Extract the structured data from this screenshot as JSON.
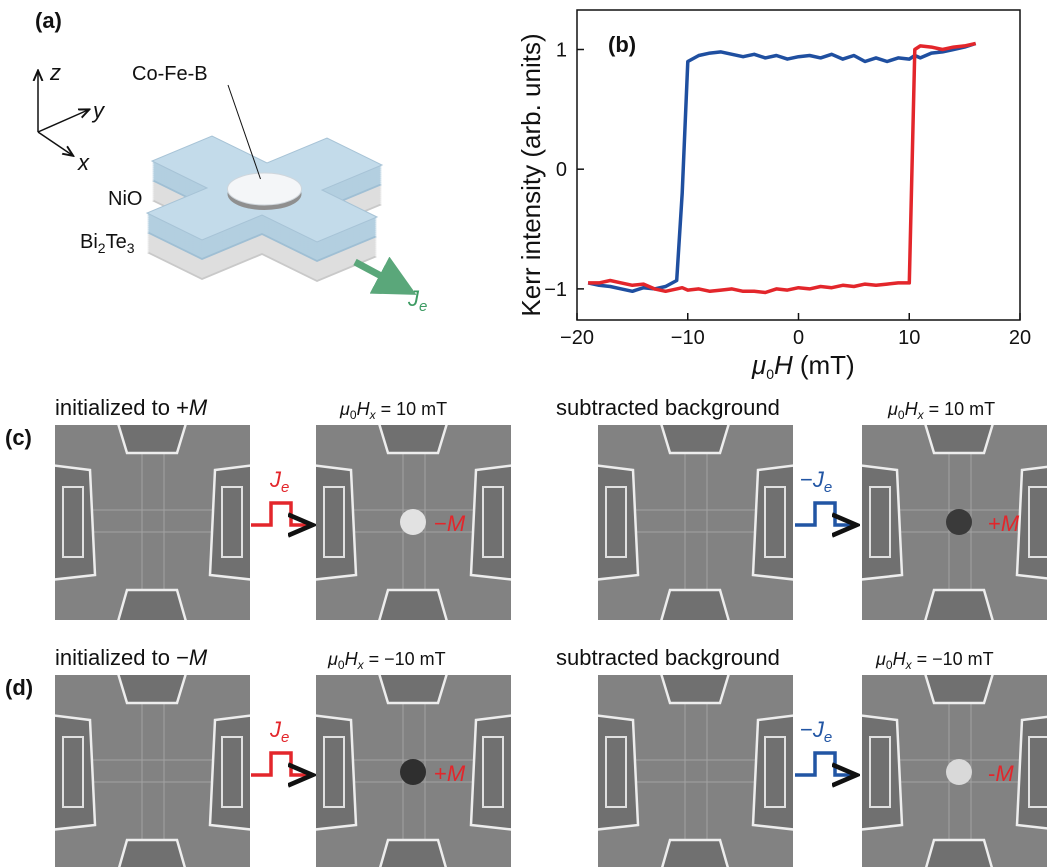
{
  "panel_a": {
    "label": "(a)",
    "axes": [
      "z",
      "y",
      "x"
    ],
    "top_layer": "Co-Fe-B",
    "middle_layer": "NiO",
    "bottom_layer": {
      "main": "Bi",
      "sub1": "2",
      "mid": "Te",
      "sub2": "3"
    },
    "current": {
      "main": "J",
      "sub": "e"
    }
  },
  "chart_data": {
    "type": "line",
    "panel_label": "(b)",
    "ylabel": "Kerr intensity (arb. units)",
    "xlabel": {
      "mu": "μ",
      "mu_sub": "0",
      "var": "H",
      "unit": "(mT)"
    },
    "x": [
      -19,
      -18,
      -17,
      -16,
      -15,
      -14,
      -13,
      -12,
      -11,
      -10.5,
      -10,
      -9,
      -8,
      -7,
      -6,
      -5,
      -4,
      -3,
      -2,
      -1,
      0,
      1,
      2,
      3,
      4,
      5,
      6,
      7,
      8,
      9,
      10,
      10.5,
      11,
      12,
      13,
      14,
      15,
      16
    ],
    "series": [
      {
        "color": "#1f4fa0",
        "values": [
          -0.95,
          -0.97,
          -0.98,
          -1.0,
          -1.02,
          -0.99,
          -1.0,
          -0.98,
          -0.93,
          -0.2,
          0.9,
          0.95,
          0.97,
          0.98,
          0.96,
          0.94,
          0.96,
          0.93,
          0.95,
          0.92,
          0.94,
          0.95,
          0.93,
          0.96,
          0.92,
          0.95,
          0.9,
          0.93,
          0.9,
          0.93,
          0.92,
          0.95,
          0.93,
          0.97,
          0.98,
          1.0,
          1.02,
          1.05
        ]
      },
      {
        "color": "#e3262b",
        "values": [
          -0.95,
          -0.95,
          -0.93,
          -0.95,
          -0.97,
          -0.96,
          -1.0,
          -1.02,
          -1.0,
          -0.99,
          -1.01,
          -1.0,
          -1.02,
          -1.01,
          -1.0,
          -1.02,
          -1.02,
          -1.03,
          -1.0,
          -1.01,
          -0.99,
          -1.0,
          -0.98,
          -0.99,
          -0.97,
          -0.98,
          -0.96,
          -0.97,
          -0.96,
          -0.95,
          -0.95,
          1.0,
          1.03,
          1.02,
          1.0,
          1.02,
          1.03,
          1.05
        ]
      }
    ],
    "xlim": [
      -20,
      20
    ],
    "ylim": [
      -1.26,
      1.33
    ],
    "xticks": [
      {
        "value": -20,
        "label": "−20"
      },
      {
        "value": -10,
        "label": "−10"
      },
      0,
      10,
      20
    ],
    "yticks": [
      {
        "value": -1,
        "label": "−1"
      },
      0,
      1
    ]
  },
  "rows": [
    {
      "label": "(c)",
      "init": {
        "pre": "initialized to +",
        "var": "M"
      },
      "field1": {
        "mu": "μ",
        "mu_sub": "0",
        "var": "H",
        "var_sub": "x",
        "value": " = 10 mT"
      },
      "background": "subtracted background",
      "field2": {
        "mu": "μ",
        "mu_sub": "0",
        "var": "H",
        "var_sub": "x",
        "value": " = 10 mT"
      },
      "pulse1": {
        "sign": "",
        "main": "J",
        "sub": "e"
      },
      "pulse2": {
        "sign": "−",
        "main": "J",
        "sub": "e"
      },
      "result1": {
        "sign": "−",
        "var": "M"
      },
      "result2": {
        "sign": "+",
        "var": "M"
      }
    },
    {
      "label": "(d)",
      "init": {
        "pre": "initialized to −",
        "var": "M"
      },
      "field1": {
        "mu": "μ",
        "mu_sub": "0",
        "var": "H",
        "var_sub": "x",
        "value": " = −10 mT"
      },
      "background": "subtracted background",
      "field2": {
        "mu": "μ",
        "mu_sub": "0",
        "var": "H",
        "var_sub": "x",
        "value": " = −10 mT"
      },
      "pulse1": {
        "sign": "",
        "main": "J",
        "sub": "e"
      },
      "pulse2": {
        "sign": "−",
        "main": "J",
        "sub": "e"
      },
      "result1": {
        "sign": "+",
        "var": "M"
      },
      "result2": {
        "sign": "-",
        "var": "M"
      }
    }
  ]
}
